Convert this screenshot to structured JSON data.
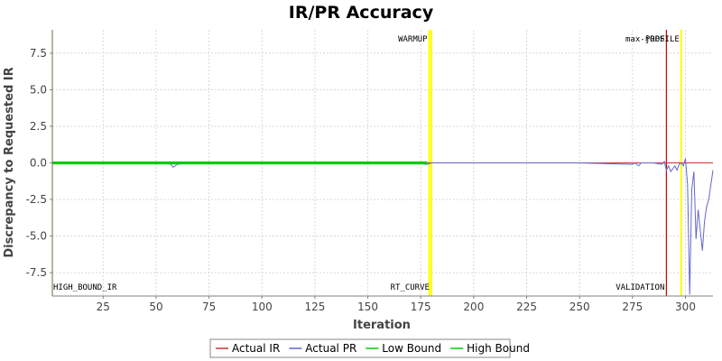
{
  "chart_data": {
    "type": "line",
    "title": "IR/PR Accuracy",
    "xlabel": "Iteration",
    "ylabel": "Discrepancy to Requested IR",
    "xlim": [
      1,
      313
    ],
    "ylim": [
      -9.1,
      9.1
    ],
    "x_ticks": [
      25,
      50,
      75,
      100,
      125,
      150,
      175,
      200,
      225,
      250,
      275,
      300
    ],
    "x_tick_labels": [
      "25",
      "50",
      "75",
      "100",
      "125",
      "150",
      "175",
      "200",
      "225",
      "250",
      "275",
      "300"
    ],
    "y_ticks": [
      7.5,
      5.0,
      2.5,
      0.0,
      -2.5,
      -5.0,
      -7.5
    ],
    "y_tick_labels": [
      "7.5",
      "5.0",
      "2.5",
      "0.0",
      "-2.5",
      "-5.0",
      "-7.5"
    ],
    "grid": true,
    "legend_position": "bottom",
    "markers": [
      {
        "label": "WARMUP",
        "x": 179,
        "color": "#ffff00",
        "label_position": "top"
      },
      {
        "label": "RT_CURVE",
        "x": 180,
        "color": "#ffff00",
        "label_position": "bottom"
      },
      {
        "label": "max-jOPS",
        "x": 291,
        "color": "#cc0000",
        "label_position": "top"
      },
      {
        "label": "VALIDATION",
        "x": 291,
        "color": "#cc0000",
        "label_position": "bottom"
      },
      {
        "label": "PROFILE",
        "x": 298,
        "color": "#ffff00",
        "label_position": "top"
      },
      {
        "label": "HIGH_BOUND_IR",
        "x": 1,
        "color": "#999900",
        "label_position": "bottom"
      }
    ],
    "series": [
      {
        "name": "Actual IR",
        "color": "#cc3333",
        "x": [
          1,
          313
        ],
        "y": [
          0,
          0
        ]
      },
      {
        "name": "Actual PR",
        "color": "#6666cc",
        "x": [
          1,
          20,
          40,
          55,
          57,
          58,
          60,
          65,
          80,
          100,
          120,
          140,
          160,
          175,
          178,
          180,
          200,
          250,
          275,
          276,
          278,
          279,
          285,
          289,
          290,
          291,
          292,
          293,
          294,
          295,
          296,
          297,
          298,
          299,
          300,
          301,
          302,
          303,
          304,
          305,
          306,
          307,
          308,
          309,
          310,
          311,
          312,
          313
        ],
        "y": [
          0,
          -0.05,
          0.02,
          0,
          -0.1,
          -0.3,
          -0.1,
          0,
          0.05,
          0,
          -0.05,
          0.05,
          0,
          -0.05,
          -0.1,
          0,
          0,
          0,
          -0.1,
          0,
          -0.2,
          0,
          0,
          -0.1,
          0.1,
          -0.5,
          -0.2,
          -0.6,
          -0.4,
          -0.2,
          -0.5,
          -0.1,
          0,
          -0.2,
          0.3,
          -1.5,
          -9.0,
          -1.8,
          -0.6,
          -5.2,
          -3.2,
          -4.6,
          -6.0,
          -4.0,
          -3.0,
          -2.5,
          -1.5,
          -0.5
        ]
      },
      {
        "name": "Low Bound",
        "color": "#00cc00",
        "x": [
          1,
          178,
          180,
          313
        ],
        "y": [
          -0.05,
          -0.05,
          null,
          null
        ]
      },
      {
        "name": "High Bound",
        "color": "#00cc00",
        "x": [
          1,
          178,
          180,
          313
        ],
        "y": [
          0.05,
          0.05,
          null,
          null
        ]
      }
    ]
  }
}
